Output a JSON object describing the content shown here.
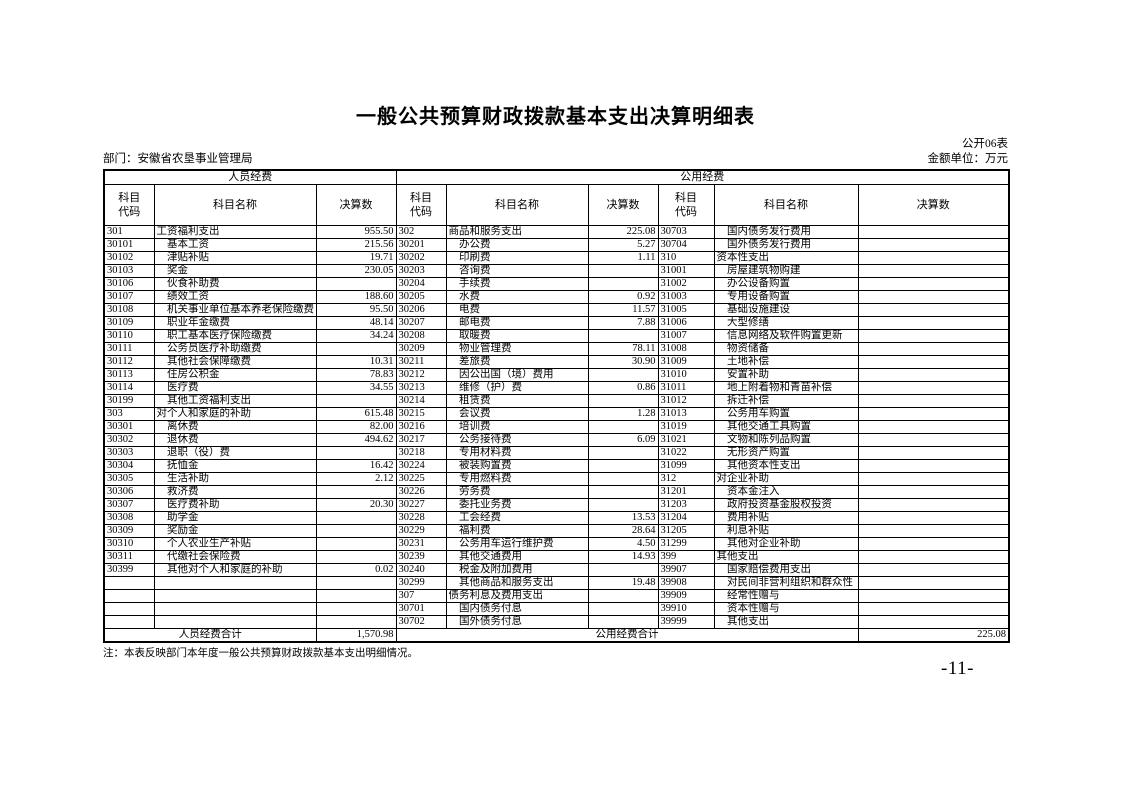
{
  "page": {
    "title": "一般公共预算财政拨款基本支出决算明细表",
    "form_code": "公开06表",
    "department": "部门：安徽省农垦事业管理局",
    "unit": "金额单位：万元",
    "note": "注：本表反映部门本年度一般公共预算财政拨款基本支出明细情况。",
    "page_number": "-11-"
  },
  "table": {
    "group_headers": [
      "人员经费",
      "公用经费"
    ],
    "column_headers": [
      "科目\n代码",
      "科目名称",
      "决算数"
    ],
    "rows": [
      [
        "301",
        "工资福利支出",
        "955.50",
        "302",
        "商品和服务支出",
        "225.08",
        "30703",
        "　国内债务发行费用",
        ""
      ],
      [
        "30101",
        "　基本工资",
        "215.56",
        "30201",
        "　办公费",
        "5.27",
        "30704",
        "　国外债务发行费用",
        ""
      ],
      [
        "30102",
        "　津贴补贴",
        "19.71",
        "30202",
        "　印刷费",
        "1.11",
        "310",
        "资本性支出",
        ""
      ],
      [
        "30103",
        "　奖金",
        "230.05",
        "30203",
        "　咨询费",
        "",
        "31001",
        "　房屋建筑物购建",
        ""
      ],
      [
        "30106",
        "　伙食补助费",
        "",
        "30204",
        "　手续费",
        "",
        "31002",
        "　办公设备购置",
        ""
      ],
      [
        "30107",
        "　绩效工资",
        "188.60",
        "30205",
        "　水费",
        "0.92",
        "31003",
        "　专用设备购置",
        ""
      ],
      [
        "30108",
        "　机关事业单位基本养老保险缴费",
        "95.50",
        "30206",
        "　电费",
        "11.57",
        "31005",
        "　基础设施建设",
        ""
      ],
      [
        "30109",
        "　职业年金缴费",
        "48.14",
        "30207",
        "　邮电费",
        "7.88",
        "31006",
        "　大型修缮",
        ""
      ],
      [
        "30110",
        "　职工基本医疗保险缴费",
        "34.24",
        "30208",
        "　取暖费",
        "",
        "31007",
        "　信息网络及软件购置更新",
        ""
      ],
      [
        "30111",
        "　公务员医疗补助缴费",
        "",
        "30209",
        "　物业管理费",
        "78.11",
        "31008",
        "　物资储备",
        ""
      ],
      [
        "30112",
        "　其他社会保障缴费",
        "10.31",
        "30211",
        "　差旅费",
        "30.90",
        "31009",
        "　土地补偿",
        ""
      ],
      [
        "30113",
        "　住房公积金",
        "78.83",
        "30212",
        "　因公出国（境）费用",
        "",
        "31010",
        "　安置补助",
        ""
      ],
      [
        "30114",
        "　医疗费",
        "34.55",
        "30213",
        "　维修（护）费",
        "0.86",
        "31011",
        "　地上附着物和青苗补偿",
        ""
      ],
      [
        "30199",
        "　其他工资福利支出",
        "",
        "30214",
        "　租赁费",
        "",
        "31012",
        "　拆迁补偿",
        ""
      ],
      [
        "303",
        "对个人和家庭的补助",
        "615.48",
        "30215",
        "　会议费",
        "1.28",
        "31013",
        "　公务用车购置",
        ""
      ],
      [
        "30301",
        "　离休费",
        "82.00",
        "30216",
        "　培训费",
        "",
        "31019",
        "　其他交通工具购置",
        ""
      ],
      [
        "30302",
        "　退休费",
        "494.62",
        "30217",
        "　公务接待费",
        "6.09",
        "31021",
        "　文物和陈列品购置",
        ""
      ],
      [
        "30303",
        "　退职（役）费",
        "",
        "30218",
        "　专用材料费",
        "",
        "31022",
        "　无形资产购置",
        ""
      ],
      [
        "30304",
        "　抚恤金",
        "16.42",
        "30224",
        "　被装购置费",
        "",
        "31099",
        "　其他资本性支出",
        ""
      ],
      [
        "30305",
        "　生活补助",
        "2.12",
        "30225",
        "　专用燃料费",
        "",
        "312",
        "对企业补助",
        ""
      ],
      [
        "30306",
        "　救济费",
        "",
        "30226",
        "　劳务费",
        "",
        "31201",
        "　资本金注入",
        ""
      ],
      [
        "30307",
        "　医疗费补助",
        "20.30",
        "30227",
        "　委托业务费",
        "",
        "31203",
        "　政府投资基金股权投资",
        ""
      ],
      [
        "30308",
        "　助学金",
        "",
        "30228",
        "　工会经费",
        "13.53",
        "31204",
        "　费用补贴",
        ""
      ],
      [
        "30309",
        "　奖励金",
        "",
        "30229",
        "　福利费",
        "28.64",
        "31205",
        "　利息补贴",
        ""
      ],
      [
        "30310",
        "　个人农业生产补贴",
        "",
        "30231",
        "　公务用车运行维护费",
        "4.50",
        "31299",
        "　其他对企业补助",
        ""
      ],
      [
        "30311",
        "　代缴社会保险费",
        "",
        "30239",
        "　其他交通费用",
        "14.93",
        "399",
        "其他支出",
        ""
      ],
      [
        "30399",
        "　其他对个人和家庭的补助",
        "0.02",
        "30240",
        "　税金及附加费用",
        "",
        "39907",
        "　国家赔偿费用支出",
        ""
      ],
      [
        "",
        "",
        "",
        "30299",
        "　其他商品和服务支出",
        "19.48",
        "39908",
        "　对民间非营利组织和群众性",
        ""
      ],
      [
        "",
        "",
        "",
        "307",
        "债务利息及费用支出",
        "",
        "39909",
        "　经常性赠与",
        ""
      ],
      [
        "",
        "",
        "",
        "30701",
        "　国内债务付息",
        "",
        "39910",
        "　资本性赠与",
        ""
      ],
      [
        "",
        "",
        "",
        "30702",
        "　国外债务付息",
        "",
        "39999",
        "　其他支出",
        ""
      ]
    ],
    "footer": {
      "left_label": "人员经费合计",
      "left_total": "1,570.98",
      "right_label": "公用经费合计",
      "right_total": "225.08"
    }
  }
}
